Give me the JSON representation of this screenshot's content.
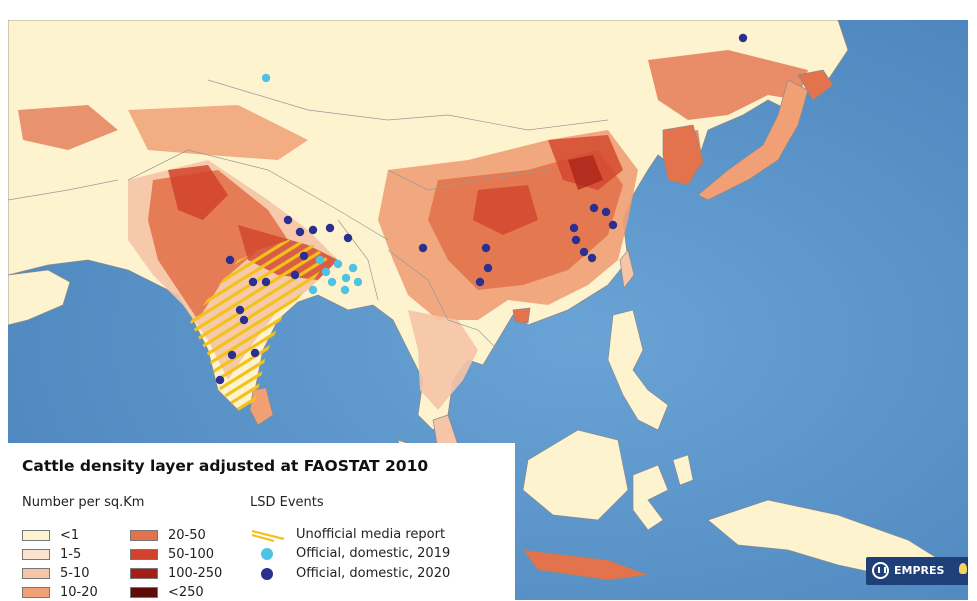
{
  "legend": {
    "title": "Cattle density layer adjusted at FAOSTAT 2010",
    "density_header": "Number per sq.Km",
    "density_classes": [
      {
        "label": "<1",
        "color": "#fdf3cf"
      },
      {
        "label": "1-5",
        "color": "#fbe3cf"
      },
      {
        "label": "5-10",
        "color": "#f6c4a6"
      },
      {
        "label": "10-20",
        "color": "#f0a074"
      },
      {
        "label": "20-50",
        "color": "#e2734d"
      },
      {
        "label": "50-100",
        "color": "#d2432c"
      },
      {
        "label": "100-250",
        "color": "#a61f16"
      },
      {
        "label": "<250",
        "color": "#5e0c08"
      }
    ],
    "events_header": "LSD Events",
    "events": [
      {
        "label": "Unofficial media report",
        "type": "hatch",
        "color": "#f2c21b"
      },
      {
        "label": "Official, domestic, 2019",
        "type": "dot",
        "color": "#4fc3e3"
      },
      {
        "label": "Official, domestic, 2020",
        "type": "dot",
        "color": "#2b2f8f"
      }
    ]
  },
  "logo": {
    "text": "EMPRES"
  },
  "colors": {
    "ocean": "#5a93c8",
    "land_base": "#fdf3cf",
    "border": "#8a8a8a"
  }
}
